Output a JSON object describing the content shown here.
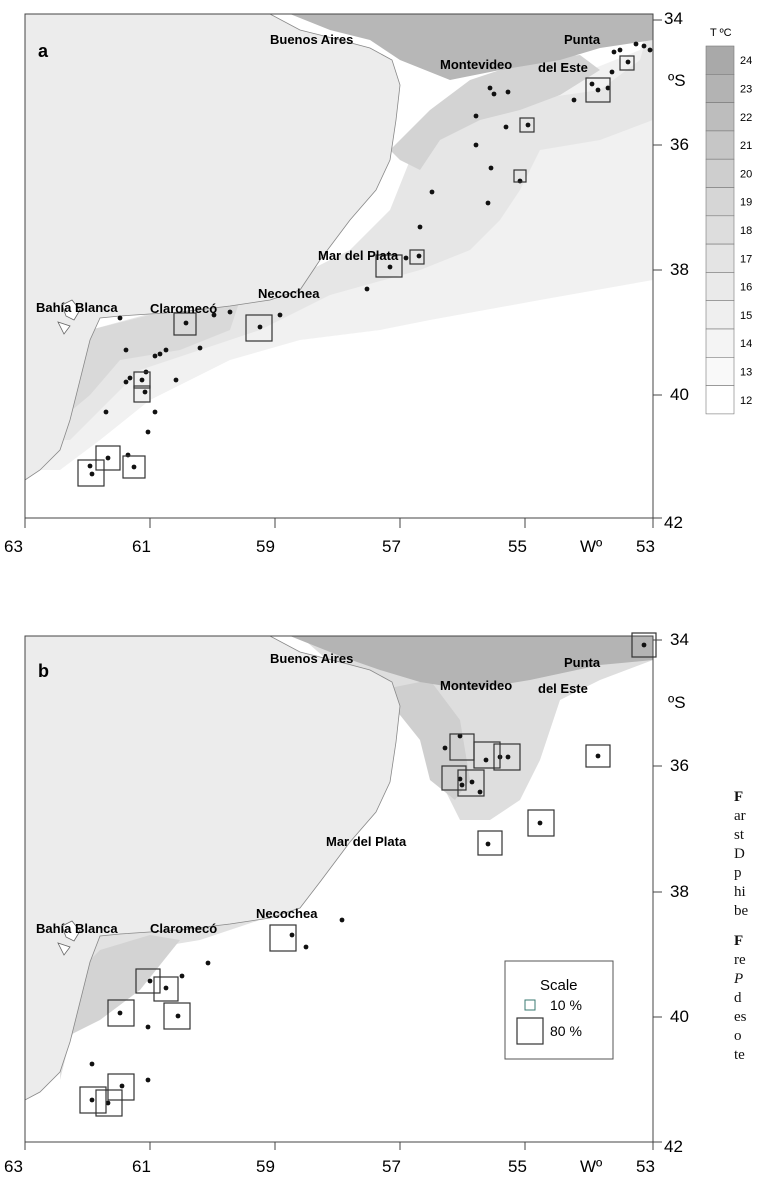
{
  "map_a": {
    "panel_label": "a",
    "cities": [
      "Buenos Aires",
      "Montevideo",
      "Punta",
      "del Este",
      "Mar del Plata",
      "Necochea",
      "Claromecó",
      "Bahía Blanca"
    ],
    "lat_ticks": [
      "34",
      "36",
      "38",
      "40",
      "42"
    ],
    "lon_ticks": [
      "63",
      "61",
      "59",
      "57",
      "55",
      "53"
    ],
    "lat_unit": "ºS",
    "lon_unit": "Wº"
  },
  "legend_temp": {
    "title": "T ºC",
    "values": [
      "24",
      "23",
      "22",
      "21",
      "20",
      "19",
      "18",
      "17",
      "16",
      "15",
      "14",
      "13",
      "12"
    ],
    "colors": [
      "#a9a9a9",
      "#b3b3b3",
      "#bdbdbd",
      "#c6c6c6",
      "#cecece",
      "#d6d6d6",
      "#dddddd",
      "#e4e4e4",
      "#eaeaea",
      "#efefef",
      "#f4f4f4",
      "#f9f9f9",
      "#ffffff"
    ]
  },
  "map_b": {
    "panel_label": "b",
    "cities": [
      "Buenos Aires",
      "Montevideo",
      "Punta",
      "del Este",
      "Mar del Plata",
      "Necochea",
      "Claromecó",
      "Bahía Blanca"
    ],
    "lat_ticks": [
      "34",
      "36",
      "38",
      "40",
      "42"
    ],
    "lon_ticks": [
      "63",
      "61",
      "59",
      "57",
      "55",
      "53"
    ],
    "lat_unit": "ºS",
    "lon_unit": "Wº"
  },
  "scale_legend": {
    "title": "Scale",
    "small": "10 %",
    "large": "80 %"
  },
  "caption": {
    "p1": [
      "F",
      "ar",
      "st",
      "D",
      "p",
      "hi",
      "be"
    ],
    "p2": [
      "F",
      "re",
      "P",
      "d",
      "es",
      "o",
      "te"
    ]
  }
}
